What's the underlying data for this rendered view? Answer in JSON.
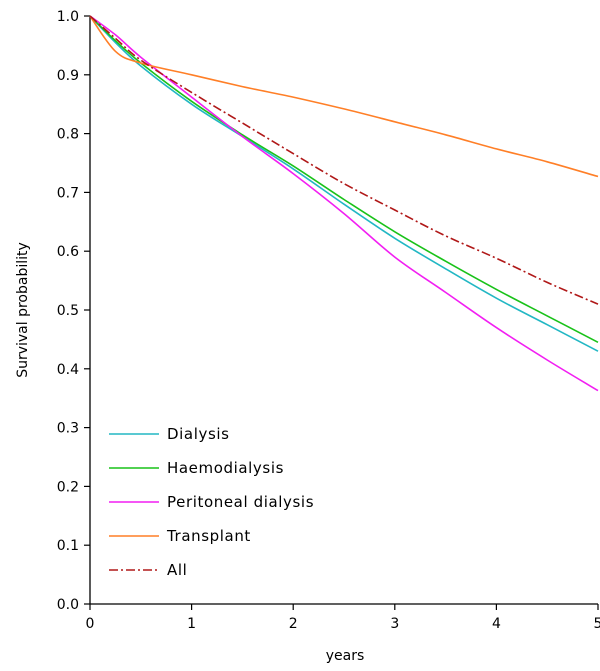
{
  "chart_data": {
    "type": "line",
    "title": "",
    "xlabel": "years",
    "ylabel": "Survival probability",
    "xlim": [
      0,
      5
    ],
    "ylim": [
      0,
      1
    ],
    "xticks": [
      "0",
      "1",
      "2",
      "3",
      "4",
      "5"
    ],
    "yticks": [
      "0.0",
      "0.1",
      "0.2",
      "0.3",
      "0.4",
      "0.5",
      "0.6",
      "0.7",
      "0.8",
      "0.9",
      "1.0"
    ],
    "grid": false,
    "legend_position": "bottom-left",
    "x": [
      0,
      0.25,
      0.5,
      1,
      1.5,
      2,
      2.5,
      3,
      3.5,
      4,
      4.5,
      5
    ],
    "series": [
      {
        "name": "Dialysis",
        "color": "#22b7c4",
        "dash": "solid",
        "values": [
          1.0,
          0.955,
          0.915,
          0.85,
          0.795,
          0.74,
          0.68,
          0.622,
          0.57,
          0.52,
          0.475,
          0.43
        ]
      },
      {
        "name": "Haemodialysis",
        "color": "#19c219",
        "dash": "solid",
        "values": [
          1.0,
          0.958,
          0.92,
          0.855,
          0.798,
          0.745,
          0.688,
          0.633,
          0.583,
          0.535,
          0.49,
          0.445
        ]
      },
      {
        "name": "Peritoneal dialysis",
        "color": "#f21ff2",
        "dash": "solid",
        "values": [
          1.0,
          0.968,
          0.93,
          0.862,
          0.795,
          0.732,
          0.664,
          0.59,
          0.53,
          0.47,
          0.415,
          0.363
        ]
      },
      {
        "name": "Transplant",
        "color": "#ff7f27",
        "dash": "solid",
        "values": [
          1.0,
          0.94,
          0.92,
          0.9,
          0.88,
          0.862,
          0.842,
          0.82,
          0.798,
          0.774,
          0.752,
          0.727
        ]
      },
      {
        "name": "All",
        "color": "#b01818",
        "dash": "dashdot",
        "values": [
          1.0,
          0.962,
          0.925,
          0.87,
          0.818,
          0.766,
          0.715,
          0.67,
          0.626,
          0.588,
          0.547,
          0.51
        ]
      }
    ]
  }
}
